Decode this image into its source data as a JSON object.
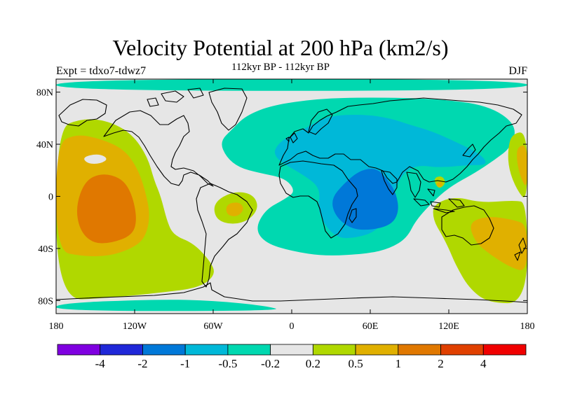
{
  "title": "Velocity Potential at 200 hPa (km2/s)",
  "subtitle": "112kyr BP - 112kyr BP",
  "left_label": "Expt = tdxo7-tdwz7",
  "right_label": "DJF",
  "map": {
    "projection": "cylindrical equidistant",
    "lon_range": [
      -180,
      180
    ],
    "lat_range": [
      -90,
      90
    ],
    "background_color": "#e6e6e6",
    "coastline_color": "#000000",
    "lat_ticks": [
      {
        "value": 80,
        "label": "80N"
      },
      {
        "value": 40,
        "label": "40N"
      },
      {
        "value": 0,
        "label": "0"
      },
      {
        "value": -40,
        "label": "40S"
      },
      {
        "value": -80,
        "label": "80S"
      }
    ],
    "lon_ticks": [
      {
        "value": -180,
        "label": "180"
      },
      {
        "value": -120,
        "label": "120W"
      },
      {
        "value": -60,
        "label": "60W"
      },
      {
        "value": 0,
        "label": "0"
      },
      {
        "value": 60,
        "label": "60E"
      },
      {
        "value": 120,
        "label": "120E"
      },
      {
        "value": 180,
        "label": "180"
      }
    ]
  },
  "colorbar": {
    "colors": [
      "#7f00e0",
      "#2028d8",
      "#0078d8",
      "#00b8d8",
      "#00d8b0",
      "#e6e6e6",
      "#b0d800",
      "#e0b000",
      "#e07800",
      "#e04000",
      "#f00000"
    ],
    "labels": [
      "-4",
      "-2",
      "-1",
      "-0.5",
      "-0.2",
      "0.2",
      "0.5",
      "1",
      "2",
      "4"
    ]
  },
  "chart_data": {
    "type": "heatmap",
    "title": "Velocity Potential at 200 hPa (km2/s)",
    "subtitle": "112kyr BP - 112kyr BP",
    "season": "DJF",
    "experiment": "tdxo7-tdwz7",
    "contour_levels": [
      -4,
      -2,
      -1,
      -0.5,
      -0.2,
      0.2,
      0.5,
      1,
      2,
      4
    ],
    "regions": [
      {
        "name": "arctic-north",
        "value": -0.35,
        "polygons": [
          [
            [
              -180,
              90
            ],
            [
              180,
              90
            ],
            [
              180,
              81
            ],
            [
              -180,
              81
            ]
          ]
        ]
      },
      {
        "name": "eurasia-cyan",
        "value": -0.35,
        "polygons": [
          [
            [
              -45,
              52
            ],
            [
              -35,
              62
            ],
            [
              -15,
              70
            ],
            [
              20,
              75
            ],
            [
              60,
              76
            ],
            [
              110,
              75
            ],
            [
              150,
              70
            ],
            [
              172,
              55
            ],
            [
              168,
              38
            ],
            [
              155,
              28
            ],
            [
              140,
              18
            ],
            [
              122,
              8
            ],
            [
              110,
              -2
            ],
            [
              95,
              -18
            ],
            [
              88,
              -32
            ],
            [
              75,
              -40
            ],
            [
              58,
              -44
            ],
            [
              25,
              -46
            ],
            [
              0,
              -42
            ],
            [
              -20,
              -36
            ],
            [
              -28,
              -25
            ],
            [
              -20,
              -10
            ],
            [
              -5,
              -2
            ],
            [
              3,
              4
            ],
            [
              -5,
              14
            ],
            [
              -25,
              18
            ],
            [
              -40,
              22
            ],
            [
              -50,
              30
            ],
            [
              -55,
              42
            ]
          ]
        ]
      },
      {
        "name": "eurasia-blue",
        "value": -0.75,
        "polygons": [
          [
            [
              10,
              52
            ],
            [
              28,
              62
            ],
            [
              55,
              63
            ],
            [
              75,
              60
            ],
            [
              90,
              55
            ],
            [
              107,
              50
            ],
            [
              125,
              42
            ],
            [
              145,
              32
            ],
            [
              150,
              24
            ],
            [
              135,
              24
            ],
            [
              112,
              22
            ],
            [
              98,
              24
            ],
            [
              87,
              20
            ],
            [
              80,
              8
            ],
            [
              76,
              -5
            ],
            [
              70,
              -20
            ],
            [
              62,
              -28
            ],
            [
              48,
              -32
            ],
            [
              35,
              -32
            ],
            [
              25,
              -22
            ],
            [
              20,
              -10
            ],
            [
              22,
              6
            ],
            [
              10,
              16
            ],
            [
              -15,
              30
            ],
            [
              -10,
              42
            ]
          ]
        ]
      },
      {
        "name": "indian-ocean-deep",
        "value": -1.5,
        "polygons": [
          [
            [
              40,
              10
            ],
            [
              52,
              20
            ],
            [
              65,
              22
            ],
            [
              74,
              12
            ],
            [
              80,
              2
            ],
            [
              82,
              -12
            ],
            [
              76,
              -22
            ],
            [
              60,
              -26
            ],
            [
              45,
              -25
            ],
            [
              33,
              -15
            ],
            [
              30,
              -2
            ]
          ]
        ]
      },
      {
        "name": "pacific-yellowgreen",
        "value": 0.35,
        "polygons": [
          [
            [
              -180,
              52
            ],
            [
              -160,
              60
            ],
            [
              -140,
              58
            ],
            [
              -122,
              48
            ],
            [
              -110,
              30
            ],
            [
              -105,
              12
            ],
            [
              -100,
              0
            ],
            [
              -95,
              -20
            ],
            [
              -90,
              -30
            ],
            [
              -75,
              -36
            ],
            [
              -62,
              -50
            ],
            [
              -58,
              -60
            ],
            [
              -70,
              -70
            ],
            [
              -100,
              -74
            ],
            [
              -140,
              -78
            ],
            [
              -180,
              -80
            ]
          ]
        ]
      },
      {
        "name": "pacific-gold",
        "value": 0.75,
        "polygons": [
          [
            [
              -180,
              40
            ],
            [
              -165,
              48
            ],
            [
              -145,
              44
            ],
            [
              -128,
              36
            ],
            [
              -118,
              22
            ],
            [
              -112,
              5
            ],
            [
              -108,
              -15
            ],
            [
              -112,
              -32
            ],
            [
              -122,
              -40
            ],
            [
              -140,
              -46
            ],
            [
              -160,
              -46
            ],
            [
              -180,
              -42
            ]
          ]
        ]
      },
      {
        "name": "pacific-orange",
        "value": 1.5,
        "polygons": [
          [
            [
              -158,
              12
            ],
            [
              -145,
              18
            ],
            [
              -130,
              14
            ],
            [
              -122,
              2
            ],
            [
              -118,
              -18
            ],
            [
              -122,
              -30
            ],
            [
              -138,
              -36
            ],
            [
              -152,
              -36
            ],
            [
              -162,
              -26
            ],
            [
              -165,
              -8
            ]
          ]
        ]
      },
      {
        "name": "australia-yellowgreen",
        "value": 0.35,
        "polygons": [
          [
            [
              108,
              -6
            ],
            [
              125,
              0
            ],
            [
              145,
              -5
            ],
            [
              170,
              -3
            ],
            [
              180,
              -5
            ],
            [
              180,
              -82
            ],
            [
              150,
              -82
            ],
            [
              135,
              -70
            ],
            [
              125,
              -52
            ],
            [
              120,
              -40
            ],
            [
              115,
              -30
            ],
            [
              108,
              -18
            ]
          ]
        ]
      },
      {
        "name": "australia-gold",
        "value": 0.75,
        "polygons": [
          [
            [
              135,
              -20
            ],
            [
              150,
              -15
            ],
            [
              170,
              -18
            ],
            [
              180,
              -22
            ],
            [
              180,
              -58
            ],
            [
              168,
              -55
            ],
            [
              152,
              -45
            ],
            [
              140,
              -35
            ]
          ]
        ]
      },
      {
        "name": "east-pacific-yellowgreen",
        "value": 0.35,
        "polygons": [
          [
            [
              168,
              48
            ],
            [
              180,
              50
            ],
            [
              180,
              -5
            ],
            [
              172,
              5
            ],
            [
              166,
              20
            ],
            [
              165,
              35
            ]
          ]
        ]
      },
      {
        "name": "east-pacific-gold",
        "value": 0.75,
        "polygons": [
          [
            [
              172,
              38
            ],
            [
              180,
              40
            ],
            [
              180,
              5
            ],
            [
              175,
              14
            ],
            [
              172,
              26
            ]
          ]
        ]
      },
      {
        "name": "south-america-yellowgreen",
        "value": 0.35,
        "polygons": [
          [
            [
              -60,
              -5
            ],
            [
              -45,
              4
            ],
            [
              -30,
              2
            ],
            [
              -25,
              -8
            ],
            [
              -32,
              -18
            ],
            [
              -45,
              -22
            ],
            [
              -58,
              -18
            ]
          ]
        ]
      },
      {
        "name": "south-america-gold",
        "value": 0.75,
        "polygons": [
          [
            [
              -50,
              -6
            ],
            [
              -40,
              -4
            ],
            [
              -36,
              -10
            ],
            [
              -42,
              -16
            ],
            [
              -50,
              -14
            ]
          ]
        ]
      },
      {
        "name": "maritime-continent-yellowgreen",
        "value": 0.35,
        "polygons": [
          [
            [
              108,
              14
            ],
            [
              115,
              16
            ],
            [
              118,
              10
            ],
            [
              112,
              5
            ]
          ]
        ]
      },
      {
        "name": "maritime-continent-gold",
        "value": 0.75,
        "polygons": [
          [
            [
              110,
              10
            ],
            [
              114,
              12
            ],
            [
              116,
              8
            ],
            [
              112,
              7
            ]
          ]
        ]
      },
      {
        "name": "pacific-white-hole",
        "value": 0.0,
        "polygons": [
          [
            [
              -160,
              30
            ],
            [
              -148,
              33
            ],
            [
              -140,
              29
            ],
            [
              -146,
              25
            ],
            [
              -156,
              25
            ]
          ]
        ]
      },
      {
        "name": "antarctic-cyan",
        "value": -0.35,
        "polygons": [
          [
            [
              -180,
              -82
            ],
            [
              -100,
              -79
            ],
            [
              -60,
              -80
            ],
            [
              -20,
              -84
            ],
            [
              -5,
              -88
            ],
            [
              -180,
              -88
            ]
          ]
        ]
      }
    ]
  }
}
